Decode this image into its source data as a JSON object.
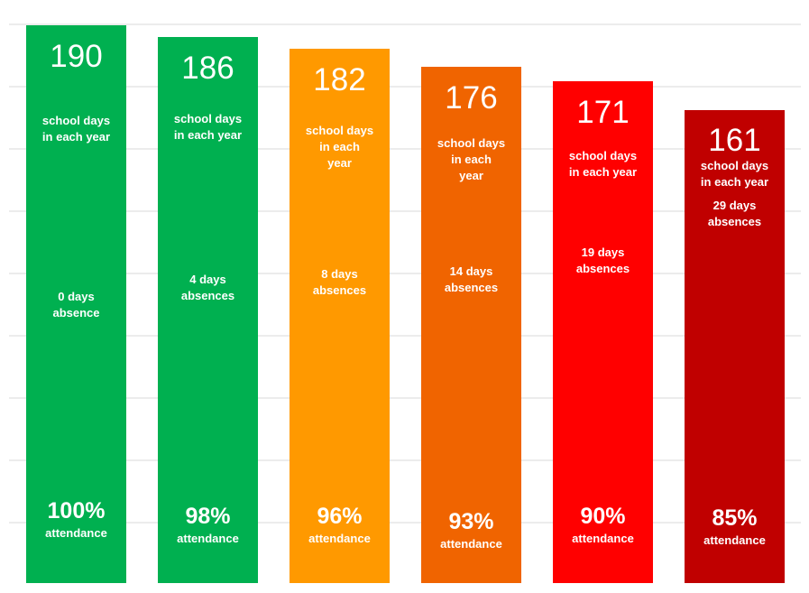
{
  "chart_data": {
    "type": "bar",
    "ylim": [
      0,
      190
    ],
    "grid": true,
    "categories": [
      "190",
      "186",
      "182",
      "176",
      "171",
      "161"
    ],
    "values": [
      190,
      186,
      182,
      176,
      171,
      161
    ],
    "bars": [
      {
        "days": "190",
        "days_label": [
          "school days",
          "in each year"
        ],
        "absence_label": [
          "0 days",
          "absence"
        ],
        "attendance": "100%",
        "attendance_label": "attendance",
        "color": "#00b050"
      },
      {
        "days": "186",
        "days_label": [
          "school days",
          "in each year"
        ],
        "absence_label": [
          "4 days",
          "absences"
        ],
        "attendance": "98%",
        "attendance_label": "attendance",
        "color": "#00b050"
      },
      {
        "days": "182",
        "days_label": [
          "school days",
          "in each",
          "year"
        ],
        "absence_label": [
          "8 days",
          "absences"
        ],
        "attendance": "96%",
        "attendance_label": "attendance",
        "color": "#ff9900"
      },
      {
        "days": "176",
        "days_label": [
          "school days",
          "in each",
          "year"
        ],
        "absence_label": [
          "14 days",
          "absences"
        ],
        "attendance": "93%",
        "attendance_label": "attendance",
        "color": "#f06400"
      },
      {
        "days": "171",
        "days_label": [
          "school days",
          "in each year"
        ],
        "absence_label": [
          "19 days",
          "absences"
        ],
        "attendance": "90%",
        "attendance_label": "attendance",
        "color": "#ff0000"
      },
      {
        "days": "161",
        "days_label": [
          "school days",
          "in each year"
        ],
        "absence_label": [
          "29 days",
          "absences"
        ],
        "attendance": "85%",
        "attendance_label": "attendance",
        "color": "#c00000"
      }
    ]
  }
}
